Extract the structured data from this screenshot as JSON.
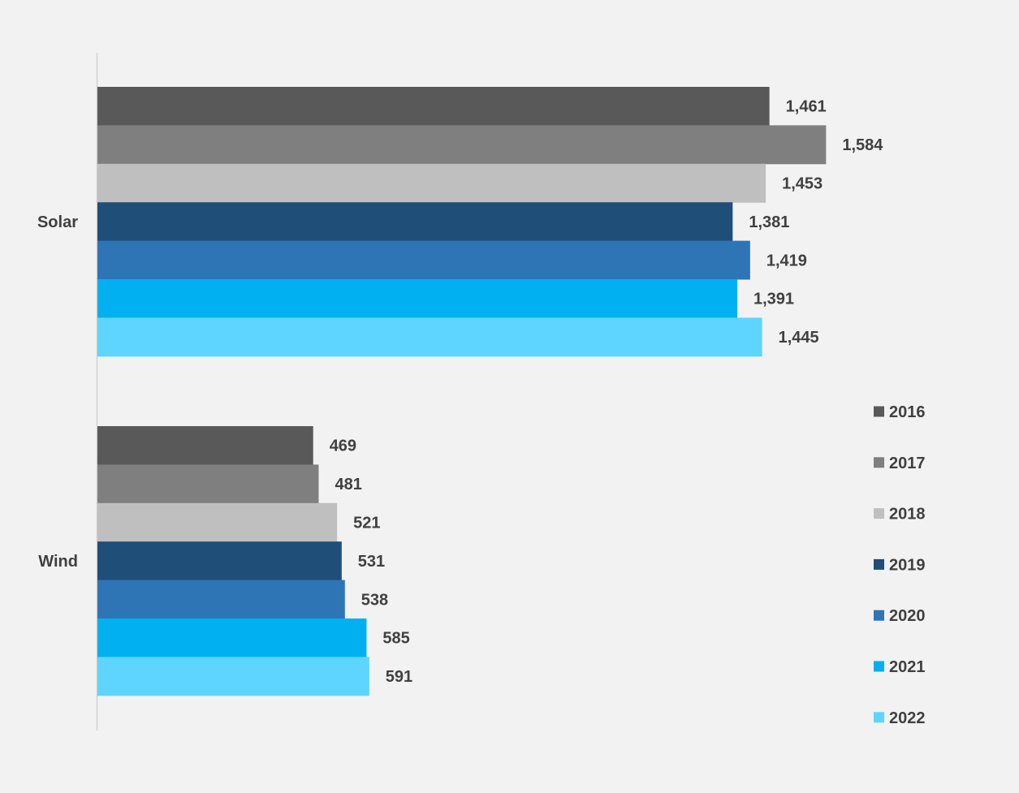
{
  "chart_data": {
    "type": "bar",
    "orientation": "horizontal",
    "title": "",
    "xlabel": "",
    "ylabel": "",
    "categories": [
      "Solar",
      "Wind"
    ],
    "xlim": [
      0,
      1600
    ],
    "grid": false,
    "legend_position": "right",
    "data_labels": true,
    "series": [
      {
        "name": "2016",
        "color": "#595959",
        "values": [
          1461,
          469
        ],
        "labels": [
          "1,461",
          "469"
        ]
      },
      {
        "name": "2017",
        "color": "#7f7f7f",
        "values": [
          1584,
          481
        ],
        "labels": [
          "1,584",
          "481"
        ]
      },
      {
        "name": "2018",
        "color": "#bfbfbf",
        "values": [
          1453,
          521
        ],
        "labels": [
          "1,453",
          "521"
        ]
      },
      {
        "name": "2019",
        "color": "#1f4e79",
        "values": [
          1381,
          531
        ],
        "labels": [
          "1,381",
          "531"
        ]
      },
      {
        "name": "2020",
        "color": "#2e75b6",
        "values": [
          1419,
          538
        ],
        "labels": [
          "1,419",
          "538"
        ]
      },
      {
        "name": "2021",
        "color": "#00b0f0",
        "values": [
          1391,
          585
        ],
        "labels": [
          "1,391",
          "585"
        ]
      },
      {
        "name": "2022",
        "color": "#5dd5ff",
        "values": [
          1445,
          591
        ],
        "labels": [
          "1,445",
          "591"
        ]
      }
    ]
  }
}
